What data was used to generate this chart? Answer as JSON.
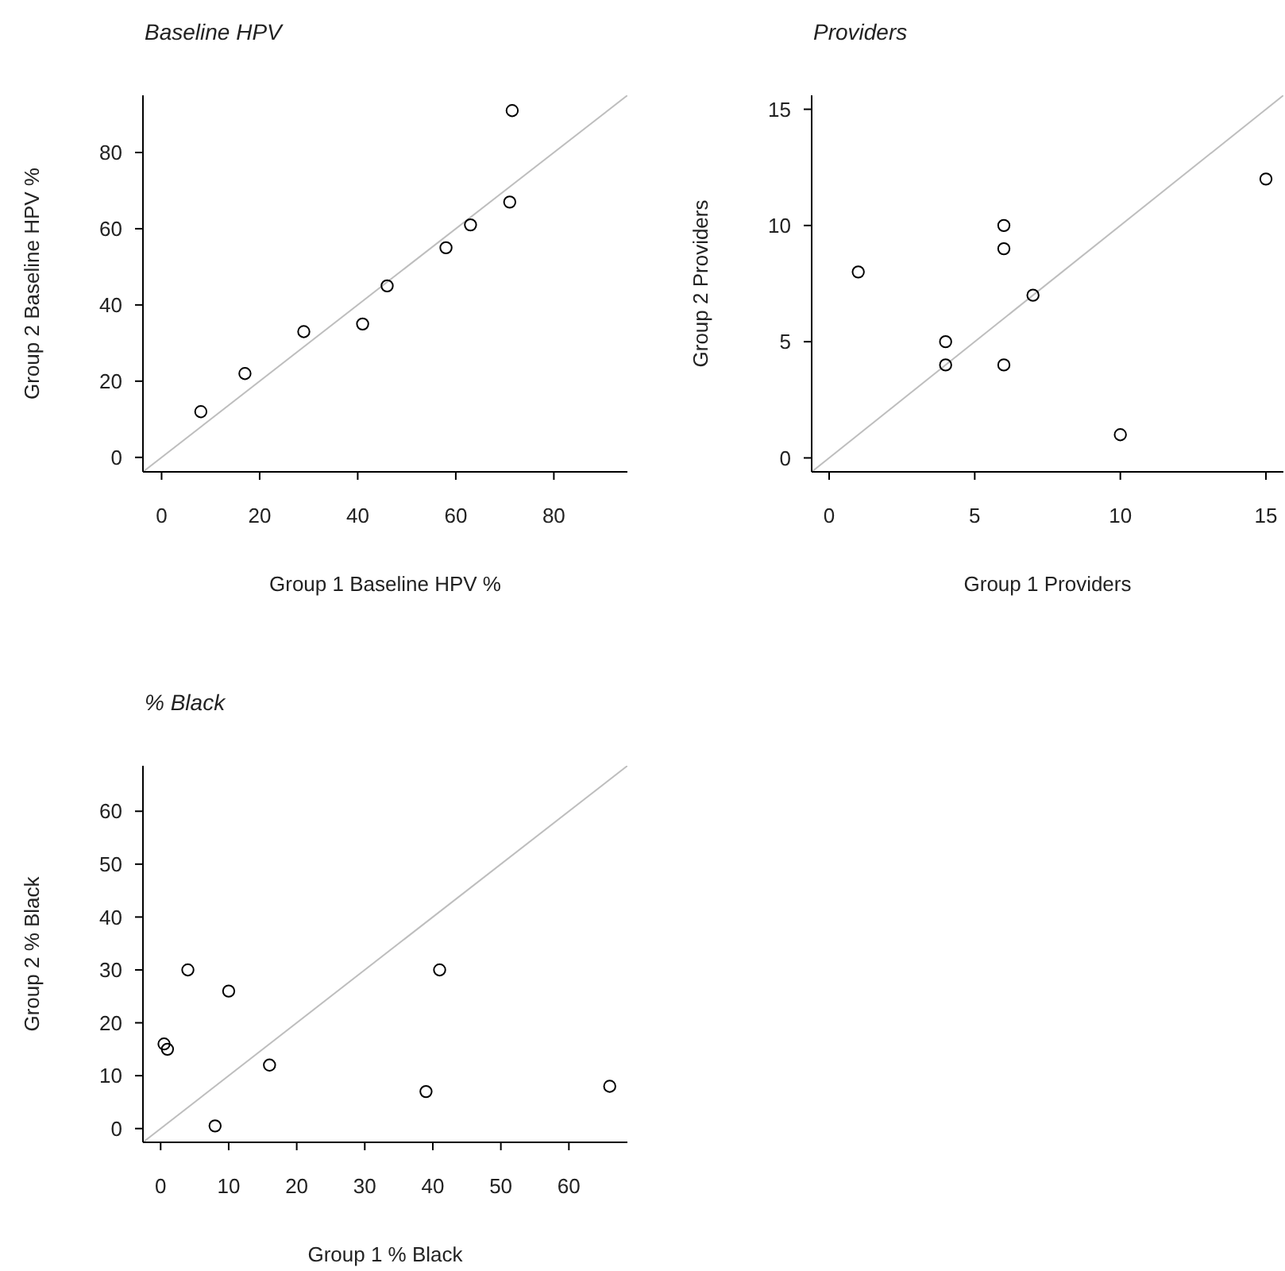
{
  "chart_data": [
    {
      "type": "scatter",
      "title": "Baseline HPV",
      "xlabel": "Group 1 Baseline HPV %",
      "ylabel": "Group 2 Baseline HPV %",
      "xlim": [
        -3.8,
        95
      ],
      "ylim": [
        -3.8,
        95
      ],
      "xticks": [
        0,
        20,
        40,
        60,
        80
      ],
      "yticks": [
        0,
        20,
        40,
        60,
        80
      ],
      "marker": "circle",
      "series": [
        {
          "color": "#000000",
          "x": [
            8,
            17,
            29,
            41,
            46,
            58,
            63,
            71,
            71.5
          ],
          "values": [
            12,
            22,
            33,
            35,
            45,
            55,
            61,
            67,
            91
          ]
        },
        {
          "type": "line",
          "marker": "none",
          "color": "#bebebe",
          "x": [
            -3.8,
            95
          ],
          "values": [
            -3.8,
            95
          ]
        }
      ]
    },
    {
      "type": "scatter",
      "title": "Providers",
      "xlabel": "Group 1 Providers",
      "ylabel": "Group 2 Providers",
      "xlim": [
        -0.6,
        15.6
      ],
      "ylim": [
        -0.6,
        15.6
      ],
      "xticks": [
        0,
        5,
        10,
        15
      ],
      "yticks": [
        0,
        5,
        10,
        15
      ],
      "marker": "circle",
      "series": [
        {
          "color": "#000000",
          "x": [
            1,
            4,
            4,
            6,
            6,
            6,
            7,
            10,
            15
          ],
          "values": [
            8,
            5,
            4,
            10,
            9,
            4,
            7,
            1,
            12
          ]
        },
        {
          "type": "line",
          "marker": "none",
          "color": "#bebebe",
          "x": [
            -0.6,
            15.6
          ],
          "values": [
            -0.6,
            15.6
          ]
        }
      ]
    },
    {
      "type": "scatter",
      "title": "% Black",
      "xlabel": "Group 1 % Black",
      "ylabel": "Group 2 % Black",
      "xlim": [
        -2.6,
        68.6
      ],
      "ylim": [
        -2.6,
        68.6
      ],
      "xticks": [
        0,
        10,
        20,
        30,
        40,
        50,
        60
      ],
      "yticks": [
        0,
        10,
        20,
        30,
        40,
        50,
        60
      ],
      "marker": "circle",
      "series": [
        {
          "color": "#000000",
          "x": [
            0.5,
            1,
            4,
            8,
            10,
            16,
            39,
            41,
            66
          ],
          "values": [
            16,
            15,
            30,
            0.5,
            26,
            12,
            7,
            30,
            8
          ]
        },
        {
          "type": "line",
          "marker": "none",
          "color": "#bebebe",
          "x": [
            -2.6,
            68.6
          ],
          "values": [
            -2.6,
            68.6
          ]
        }
      ]
    }
  ]
}
